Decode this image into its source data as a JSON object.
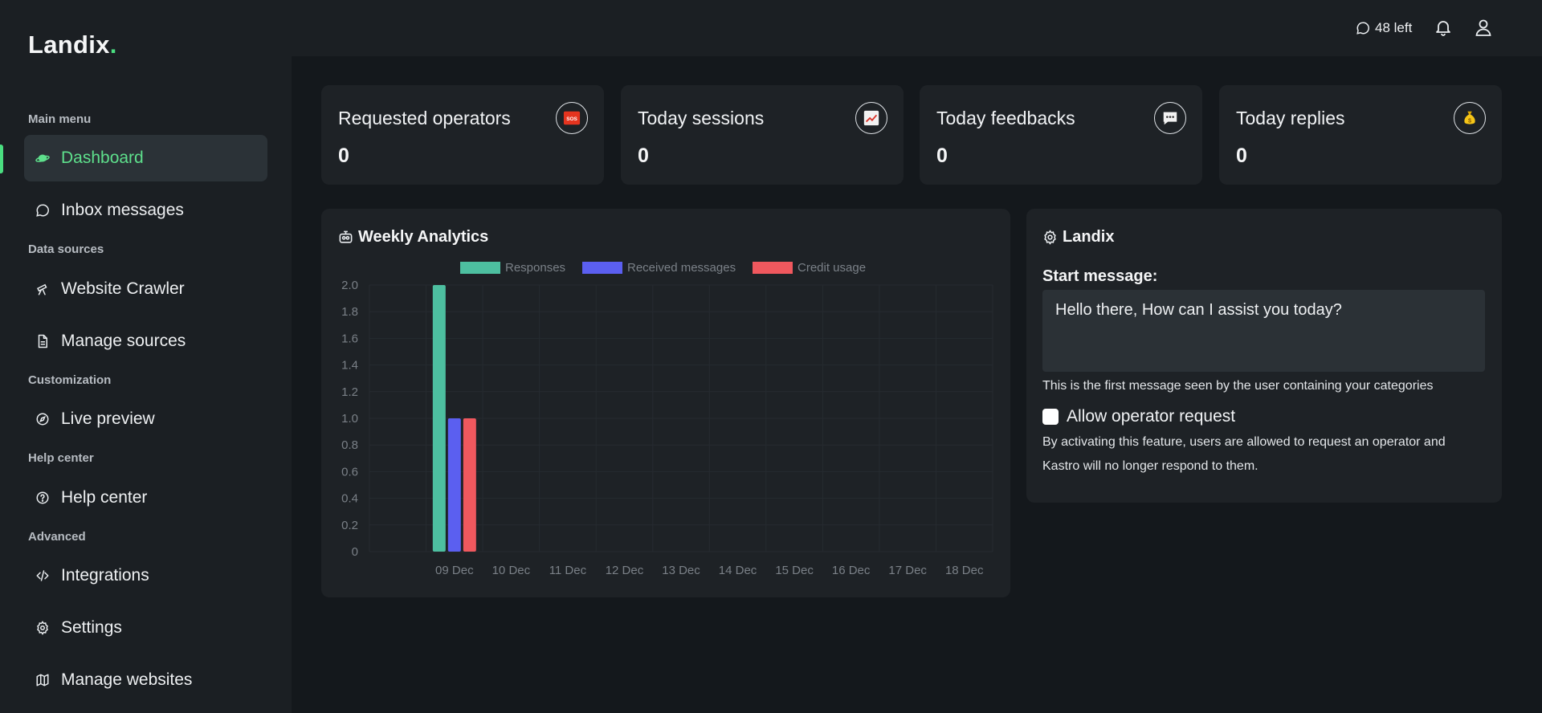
{
  "brand": {
    "name": "Landix",
    "dot": "."
  },
  "header": {
    "credits": "48 left"
  },
  "sidebar": {
    "sections": [
      {
        "label": "Main menu"
      },
      {
        "label": "Data sources"
      },
      {
        "label": "Customization"
      },
      {
        "label": "Help center"
      },
      {
        "label": "Advanced"
      }
    ],
    "items": [
      {
        "label": "Dashboard",
        "icon": "planet-icon",
        "active": true
      },
      {
        "label": "Inbox messages",
        "icon": "chat-icon"
      },
      {
        "label": "Website Crawler",
        "icon": "telescope-icon"
      },
      {
        "label": "Manage sources",
        "icon": "document-icon"
      },
      {
        "label": "Live preview",
        "icon": "compass-icon"
      },
      {
        "label": "Help center",
        "icon": "help-icon"
      },
      {
        "label": "Integrations",
        "icon": "code-icon"
      },
      {
        "label": "Settings",
        "icon": "gear-icon"
      },
      {
        "label": "Manage websites",
        "icon": "map-icon"
      }
    ]
  },
  "stats": [
    {
      "title": "Requested operators",
      "value": "0",
      "icon": "sos-icon"
    },
    {
      "title": "Today sessions",
      "value": "0",
      "icon": "chart-increasing-icon"
    },
    {
      "title": "Today feedbacks",
      "value": "0",
      "icon": "speech-bubble-icon"
    },
    {
      "title": "Today replies",
      "value": "0",
      "icon": "money-bag-icon"
    }
  ],
  "analytics": {
    "title": "Weekly Analytics",
    "icon": "robot-icon"
  },
  "chart_data": {
    "type": "bar",
    "categories": [
      "09 Dec",
      "10 Dec",
      "11 Dec",
      "12 Dec",
      "13 Dec",
      "14 Dec",
      "15 Dec",
      "16 Dec",
      "17 Dec",
      "18 Dec"
    ],
    "series": [
      {
        "name": "Responses",
        "color": "#4dbfa0",
        "values": [
          2,
          0,
          0,
          0,
          0,
          0,
          0,
          0,
          0,
          0
        ]
      },
      {
        "name": "Received messages",
        "color": "#5b5ff0",
        "values": [
          1,
          0,
          0,
          0,
          0,
          0,
          0,
          0,
          0,
          0
        ]
      },
      {
        "name": "Credit usage",
        "color": "#f0585e",
        "values": [
          1,
          0,
          0,
          0,
          0,
          0,
          0,
          0,
          0,
          0
        ]
      }
    ],
    "y_ticks": [
      "0",
      "0.2",
      "0.4",
      "0.6",
      "0.8",
      "1.0",
      "1.2",
      "1.4",
      "1.6",
      "1.8",
      "2.0"
    ],
    "ylim": [
      0,
      2
    ],
    "legend": "top",
    "grid": true
  },
  "settings": {
    "title": "Landix",
    "start_label": "Start message:",
    "start_message": "Hello there, How can I assist you today?",
    "start_help": "This is the first message seen by the user containing your categories",
    "operator_label": "Allow operator request",
    "operator_checked": false,
    "operator_help_1": "By activating this feature, users are allowed to request an operator and",
    "operator_help_2": "Kastro will no longer respond to them."
  }
}
